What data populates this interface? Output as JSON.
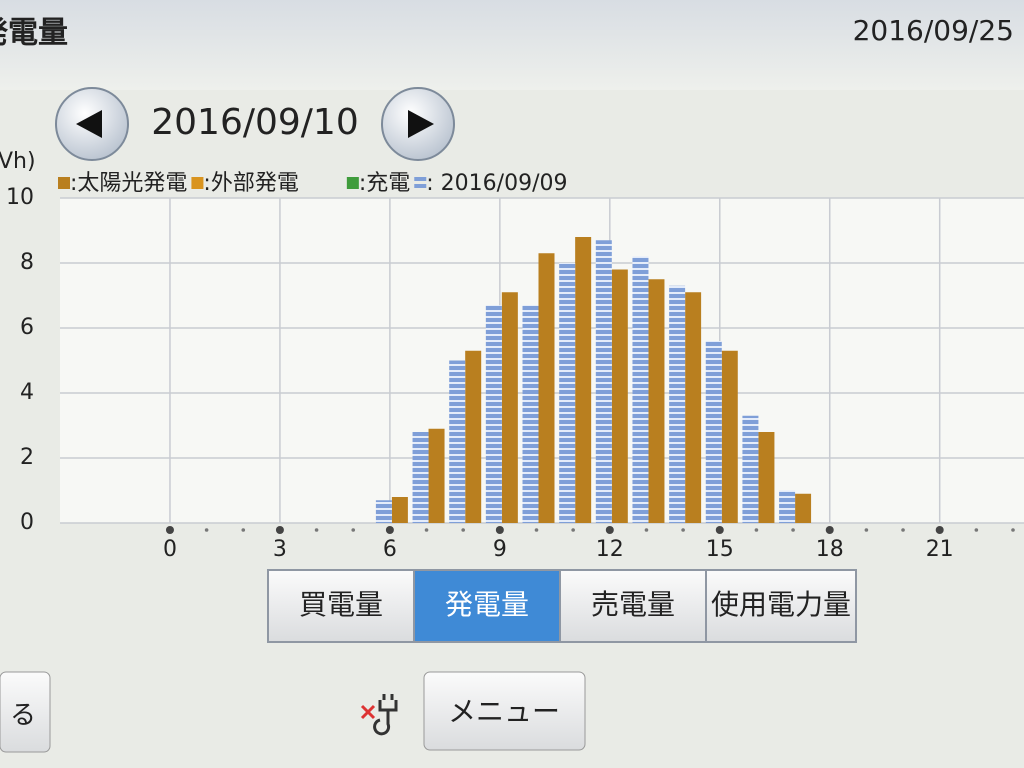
{
  "header": {
    "title": "発電量",
    "date": "2016/09/25"
  },
  "nav": {
    "date": "2016/09/10"
  },
  "chart_data": {
    "type": "bar",
    "y_label": "Vh)",
    "x": [
      6,
      7,
      8,
      9,
      10,
      11,
      12,
      13,
      14,
      15,
      16,
      17
    ],
    "series": [
      {
        "name": ":太陽光発電",
        "color": "#b97f1f",
        "values": [
          0.8,
          2.9,
          5.3,
          7.1,
          8.3,
          8.8,
          7.8,
          7.5,
          7.1,
          5.3,
          2.8,
          0.9
        ]
      },
      {
        "name": ":外部発電",
        "color": "#d9941f",
        "values": [
          null,
          null,
          null,
          null,
          null,
          null,
          null,
          null,
          null,
          null,
          null,
          null
        ]
      },
      {
        "name": ":充電",
        "color": "#3f9c3c",
        "values": [
          null,
          null,
          null,
          null,
          null,
          null,
          null,
          null,
          null,
          null,
          null,
          null
        ]
      },
      {
        "name": ": 2016/09/09",
        "color": "#7f9fd8",
        "values": [
          0.7,
          2.8,
          5.0,
          6.7,
          6.7,
          8.0,
          8.7,
          8.2,
          7.3,
          5.6,
          3.3,
          1.0
        ],
        "hatched": true
      }
    ],
    "xlim": [
      -3,
      23.3
    ],
    "xticks": [
      0,
      3,
      6,
      9,
      12,
      15,
      18,
      21
    ],
    "ylim": [
      0,
      10
    ],
    "yticks": [
      0,
      2,
      4,
      6,
      8,
      10
    ],
    "grid": true
  },
  "tabs": [
    "買電量",
    "発電量",
    "売電量",
    "使用電力量"
  ],
  "active_tab": 1,
  "footer": {
    "back": "る",
    "menu": "メニュー"
  }
}
